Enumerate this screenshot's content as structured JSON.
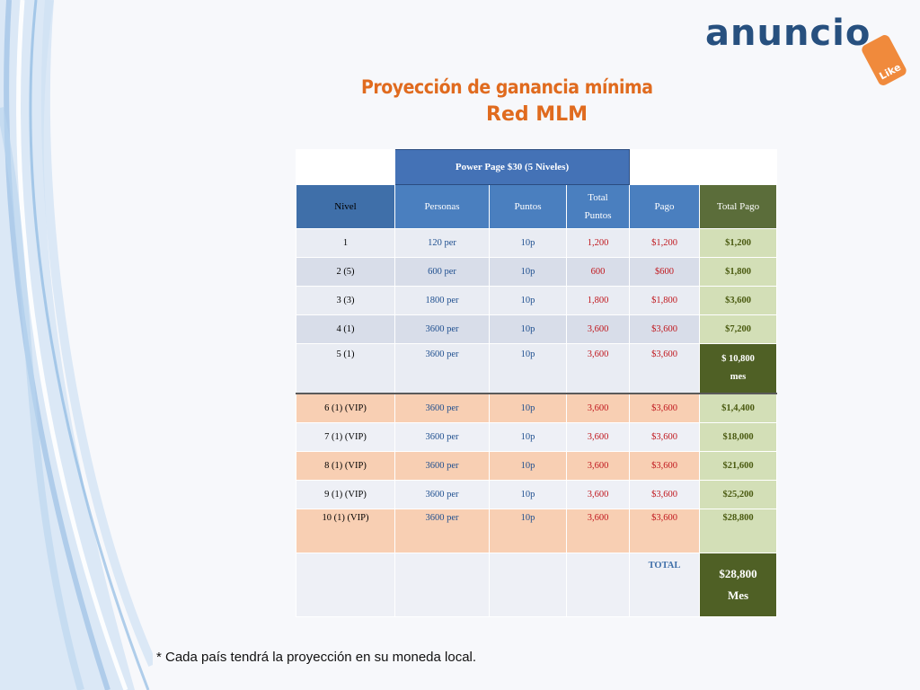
{
  "logo": {
    "text": "anuncio",
    "tag": "Like"
  },
  "title": {
    "line1": "Proyección de ganancia mínima",
    "line2": "Red MLM"
  },
  "table": {
    "banner": "Power Page $30 (5 Niveles)",
    "headers": [
      "Nivel",
      "Personas",
      "Puntos",
      "Total\nPuntos",
      "Pago",
      "Total Pago"
    ],
    "rows": [
      [
        "1",
        "120 per",
        "10p",
        "1,200",
        "$1,200",
        "$1,200"
      ],
      [
        "2 (5)",
        "600 per",
        "10p",
        "600",
        "$600",
        "$1,800"
      ],
      [
        "3 (3)",
        "1800 per",
        "10p",
        "1,800",
        "$1,800",
        "$3,600"
      ],
      [
        "4 (1)",
        "3600 per",
        "10p",
        "3,600",
        "$3,600",
        "$7,200"
      ],
      [
        "5 (1)",
        "3600 per",
        "10p",
        "3,600",
        "$3,600",
        "$ 10,800\nmes"
      ],
      [
        "6 (1) (VIP)",
        "3600 per",
        "10p",
        "3,600",
        "$3,600",
        "$1,4,400"
      ],
      [
        "7 (1) (VIP)",
        "3600 per",
        "10p",
        "3,600",
        "$3,600",
        "$18,000"
      ],
      [
        "8 (1) (VIP)",
        "3600 per",
        "10p",
        "3,600",
        "$3,600",
        "$21,600"
      ],
      [
        "9 (1) (VIP)",
        "3600 per",
        "10p",
        "3,600",
        "$3,600",
        "$25,200"
      ],
      [
        "10 (1) (VIP)",
        "3600 per",
        "10p",
        "3,600",
        "$3,600",
        "$28,800"
      ]
    ],
    "total_label": "TOTAL",
    "total_value": "$28,800\nMes"
  },
  "footnote": "* Cada país tendrá la proyección en su moneda local.",
  "colors": {
    "title": "#e06b1f",
    "header": "#4a7fbf",
    "dark_green": "#4f6025",
    "vip": "#f8cfb3"
  }
}
